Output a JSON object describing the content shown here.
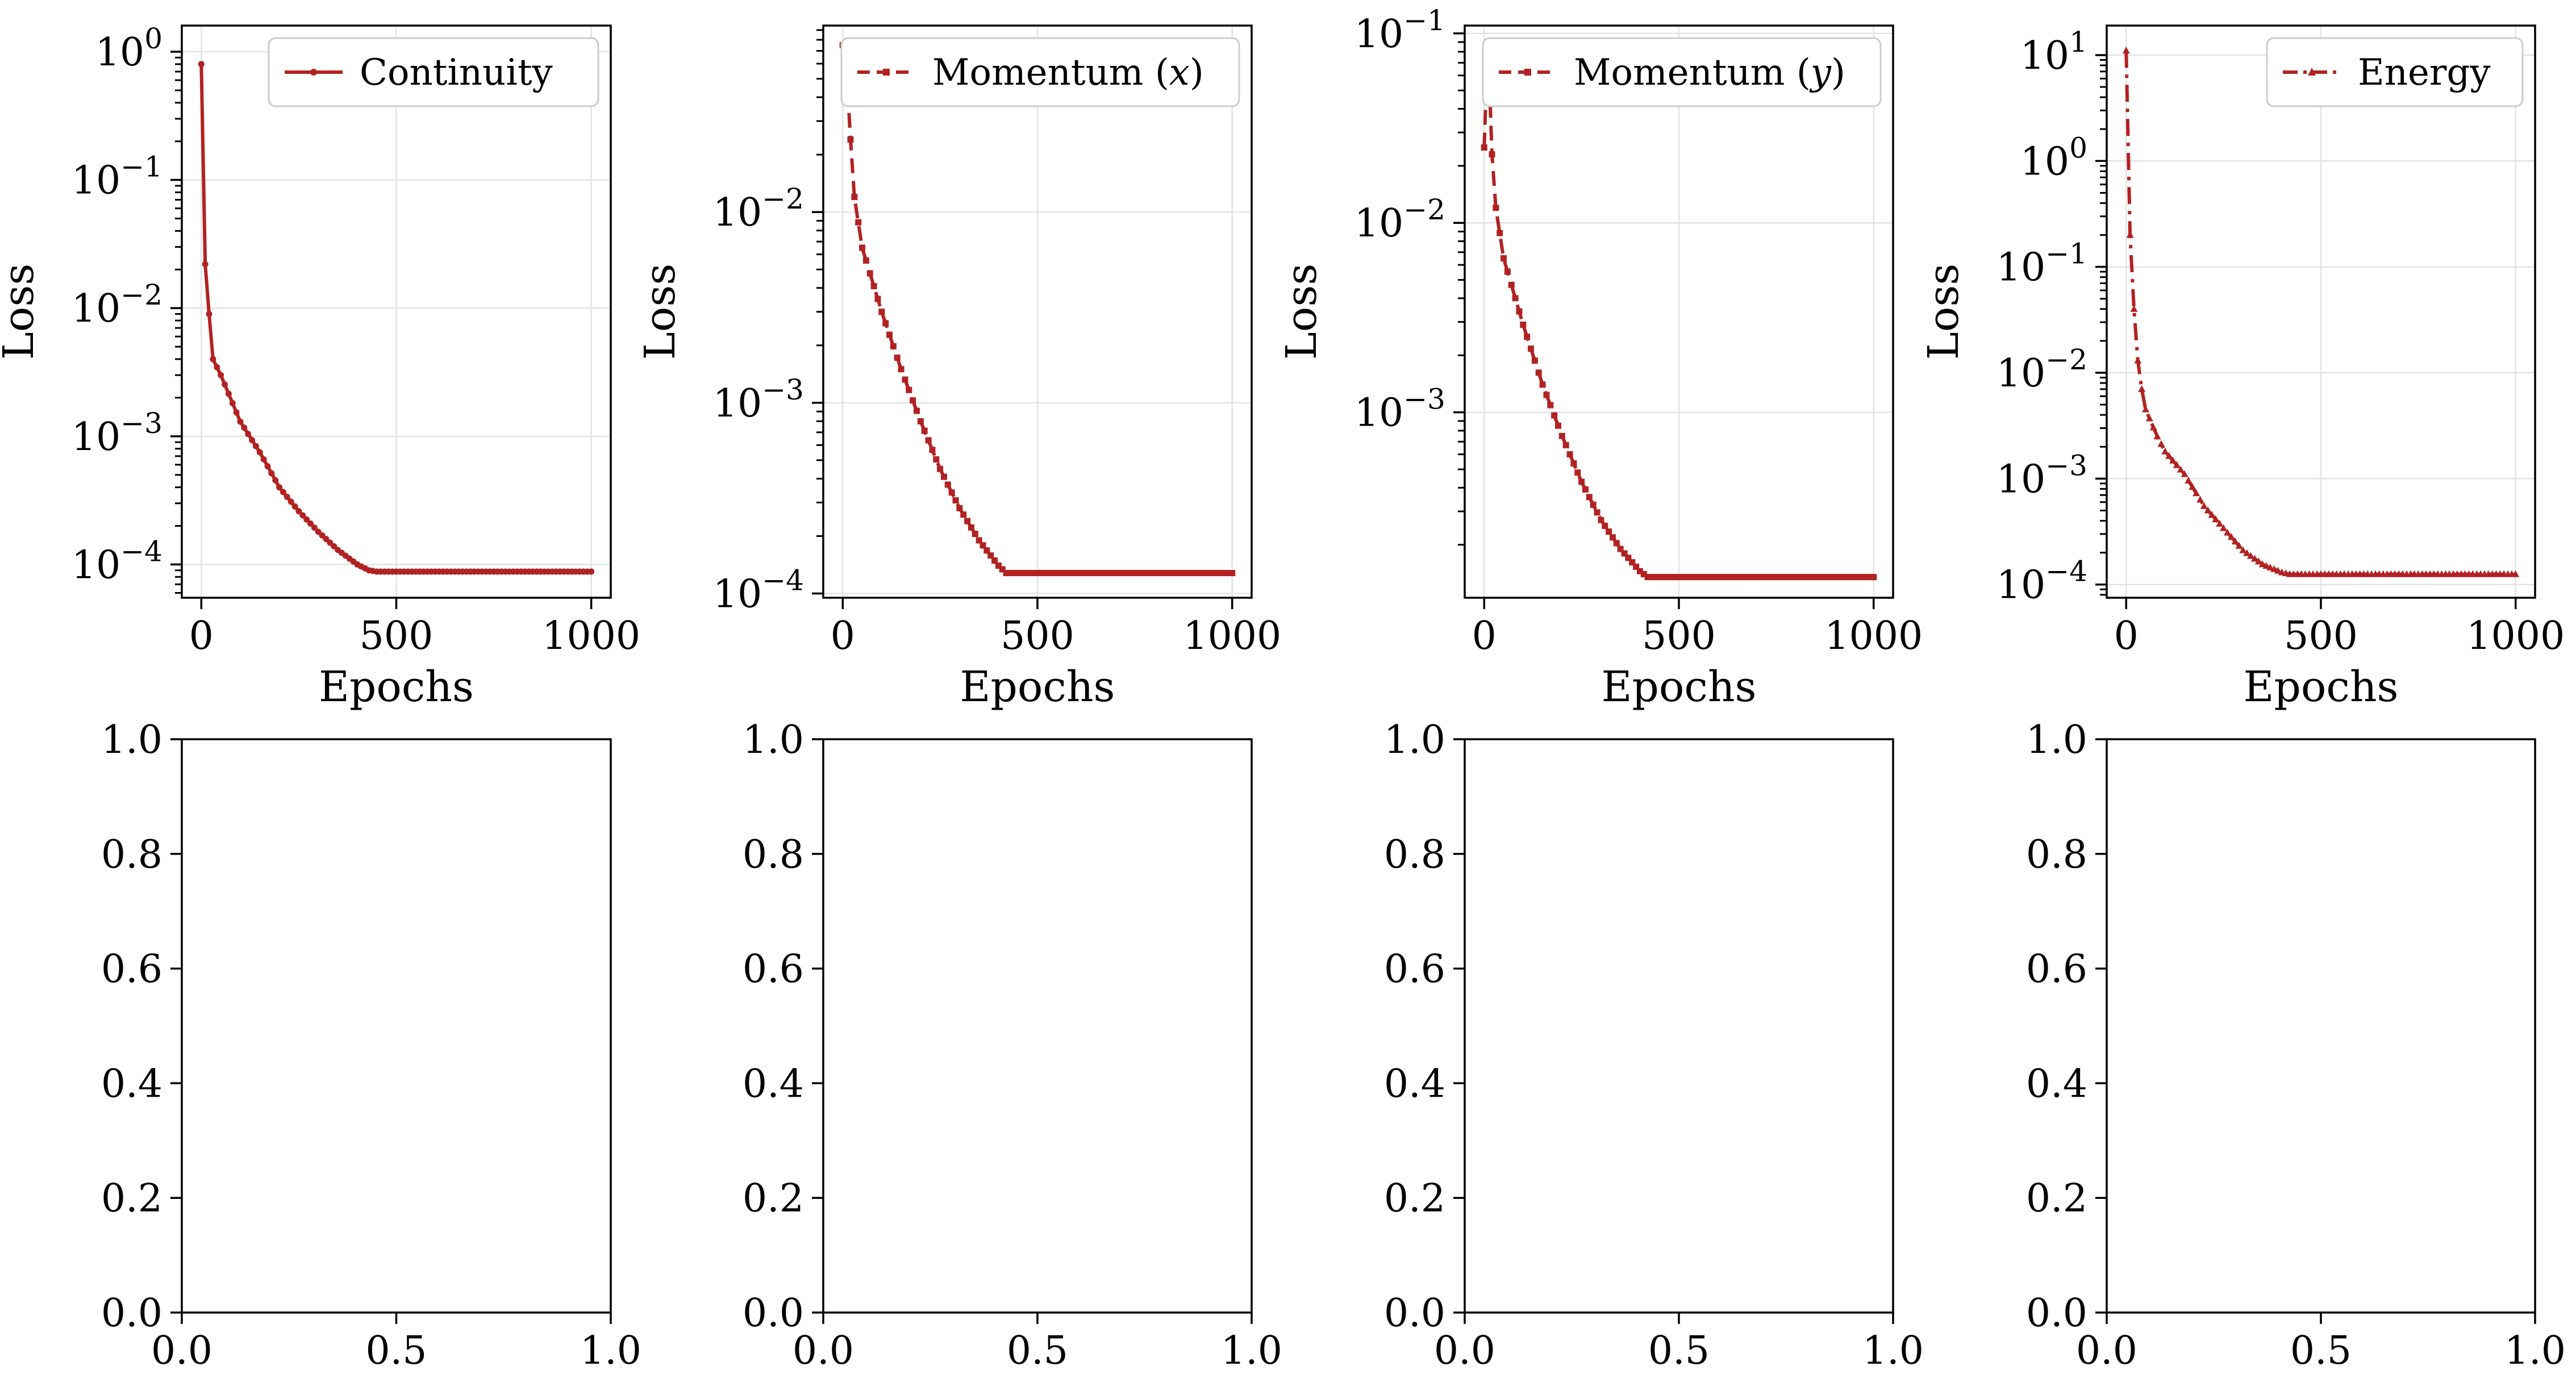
{
  "chart_data": [
    {
      "type": "line",
      "yscale": "log",
      "xlabel": "Epochs",
      "ylabel": "Loss",
      "xlim": [
        -50,
        1050
      ],
      "ylim": [
        5.5e-05,
        1.6
      ],
      "xticks": [
        0,
        500,
        1000
      ],
      "xtick_labels": [
        "0",
        "500",
        "1000"
      ],
      "yticks": [
        1,
        0.1,
        0.01,
        0.001,
        0.0001
      ],
      "ytick_labels": [
        {
          "b": "10",
          "e": "0"
        },
        {
          "b": "10",
          "e": "−1"
        },
        {
          "b": "10",
          "e": "−2"
        },
        {
          "b": "10",
          "e": "−3"
        },
        {
          "b": "10",
          "e": "−4"
        }
      ],
      "grid": true,
      "legend_position": "upper right",
      "series": [
        {
          "name": "Continuity",
          "color": "#b22222",
          "linestyle": "solid",
          "marker": "dot",
          "x": [
            0,
            10,
            20,
            30,
            50,
            100,
            150,
            200,
            250,
            300,
            350,
            400,
            430,
            450,
            600,
            800,
            1000
          ],
          "y": [
            0.8,
            0.022,
            0.009,
            0.004,
            0.003,
            0.0013,
            0.00075,
            0.0004,
            0.00026,
            0.00018,
            0.00013,
            0.0001,
            9e-05,
            8.8e-05,
            8.8e-05,
            8.8e-05,
            8.8e-05
          ]
        }
      ]
    },
    {
      "type": "line",
      "yscale": "log",
      "xlabel": "Epochs",
      "ylabel": "Loss",
      "xlim": [
        -50,
        1050
      ],
      "ylim": [
        9.5e-05,
        0.095
      ],
      "xticks": [
        0,
        500,
        1000
      ],
      "xtick_labels": [
        "0",
        "500",
        "1000"
      ],
      "yticks": [
        0.01,
        0.001,
        0.0001
      ],
      "ytick_labels": [
        {
          "b": "10",
          "e": "−2"
        },
        {
          "b": "10",
          "e": "−3"
        },
        {
          "b": "10",
          "e": "−4"
        }
      ],
      "grid": true,
      "legend_position": "upper right",
      "series": [
        {
          "name": "Momentum (x)",
          "color": "#b22222",
          "linestyle": "dashed",
          "marker": "square",
          "x": [
            0,
            10,
            20,
            30,
            50,
            100,
            150,
            200,
            250,
            300,
            350,
            400,
            420,
            450,
            600,
            800,
            1000
          ],
          "y": [
            0.075,
            0.055,
            0.024,
            0.012,
            0.0065,
            0.003,
            0.0015,
            0.0008,
            0.00045,
            0.00028,
            0.00019,
            0.00014,
            0.000128,
            0.000128,
            0.000128,
            0.000128,
            0.000128
          ]
        }
      ]
    },
    {
      "type": "line",
      "yscale": "log",
      "xlabel": "Epochs",
      "ylabel": "Loss",
      "xlim": [
        -50,
        1050
      ],
      "ylim": [
        0.000105,
        0.11
      ],
      "xticks": [
        0,
        500,
        1000
      ],
      "xtick_labels": [
        "0",
        "500",
        "1000"
      ],
      "yticks": [
        0.1,
        0.01,
        0.001
      ],
      "ytick_labels": [
        {
          "b": "10",
          "e": "−1"
        },
        {
          "b": "10",
          "e": "−2"
        },
        {
          "b": "10",
          "e": "−3"
        }
      ],
      "grid": true,
      "legend_position": "upper right",
      "series": [
        {
          "name": "Momentum (y)",
          "color": "#b22222",
          "linestyle": "dashed",
          "marker": "square",
          "x": [
            0,
            5,
            10,
            15,
            20,
            30,
            50,
            100,
            150,
            200,
            250,
            300,
            350,
            400,
            420,
            450,
            600,
            800,
            1000
          ],
          "y": [
            0.025,
            0.05,
            0.075,
            0.045,
            0.023,
            0.012,
            0.0065,
            0.0029,
            0.0014,
            0.00075,
            0.00043,
            0.00027,
            0.00019,
            0.000145,
            0.000135,
            0.000135,
            0.000135,
            0.000135,
            0.000135
          ]
        }
      ]
    },
    {
      "type": "line",
      "yscale": "log",
      "xlabel": "Epochs",
      "ylabel": "Loss",
      "xlim": [
        -50,
        1050
      ],
      "ylim": [
        7.5e-05,
        19
      ],
      "xticks": [
        0,
        500,
        1000
      ],
      "xtick_labels": [
        "0",
        "500",
        "1000"
      ],
      "yticks": [
        10,
        1,
        0.1,
        0.01,
        0.001,
        0.0001
      ],
      "ytick_labels": [
        {
          "b": "10",
          "e": "1"
        },
        {
          "b": "10",
          "e": "0"
        },
        {
          "b": "10",
          "e": "−1"
        },
        {
          "b": "10",
          "e": "−2"
        },
        {
          "b": "10",
          "e": "−3"
        },
        {
          "b": "10",
          "e": "−4"
        }
      ],
      "grid": true,
      "legend_position": "upper right",
      "series": [
        {
          "name": "Energy",
          "color": "#b22222",
          "linestyle": "dashdot",
          "marker": "triangle",
          "x": [
            0,
            10,
            20,
            30,
            40,
            50,
            80,
            100,
            150,
            200,
            250,
            300,
            350,
            400,
            420,
            450,
            600,
            800,
            1000
          ],
          "y": [
            11,
            0.2,
            0.04,
            0.013,
            0.007,
            0.0045,
            0.0025,
            0.0018,
            0.0011,
            0.00055,
            0.00034,
            0.00021,
            0.000155,
            0.00013,
            0.000125,
            0.000125,
            0.000125,
            0.000125,
            0.000125
          ]
        }
      ]
    },
    {
      "type": "empty",
      "xlim": [
        0,
        1
      ],
      "ylim": [
        0,
        1
      ],
      "xticks": [
        0,
        0.5,
        1
      ],
      "xtick_labels": [
        "0.0",
        "0.5",
        "1.0"
      ],
      "yticks": [
        0,
        0.2,
        0.4,
        0.6,
        0.8,
        1
      ],
      "ytick_labels": [
        "0.0",
        "0.2",
        "0.4",
        "0.6",
        "0.8",
        "1.0"
      ]
    },
    {
      "type": "empty",
      "xlim": [
        0,
        1
      ],
      "ylim": [
        0,
        1
      ],
      "xticks": [
        0,
        0.5,
        1
      ],
      "xtick_labels": [
        "0.0",
        "0.5",
        "1.0"
      ],
      "yticks": [
        0,
        0.2,
        0.4,
        0.6,
        0.8,
        1
      ],
      "ytick_labels": [
        "0.0",
        "0.2",
        "0.4",
        "0.6",
        "0.8",
        "1.0"
      ]
    },
    {
      "type": "empty",
      "xlim": [
        0,
        1
      ],
      "ylim": [
        0,
        1
      ],
      "xticks": [
        0,
        0.5,
        1
      ],
      "xtick_labels": [
        "0.0",
        "0.5",
        "1.0"
      ],
      "yticks": [
        0,
        0.2,
        0.4,
        0.6,
        0.8,
        1
      ],
      "ytick_labels": [
        "0.0",
        "0.2",
        "0.4",
        "0.6",
        "0.8",
        "1.0"
      ]
    },
    {
      "type": "empty",
      "xlim": [
        0,
        1
      ],
      "ylim": [
        0,
        1
      ],
      "xticks": [
        0,
        0.5,
        1
      ],
      "xtick_labels": [
        "0.0",
        "0.5",
        "1.0"
      ],
      "yticks": [
        0,
        0.2,
        0.4,
        0.6,
        0.8,
        1
      ],
      "ytick_labels": [
        "0.0",
        "0.2",
        "0.4",
        "0.6",
        "0.8",
        "1.0"
      ]
    }
  ]
}
